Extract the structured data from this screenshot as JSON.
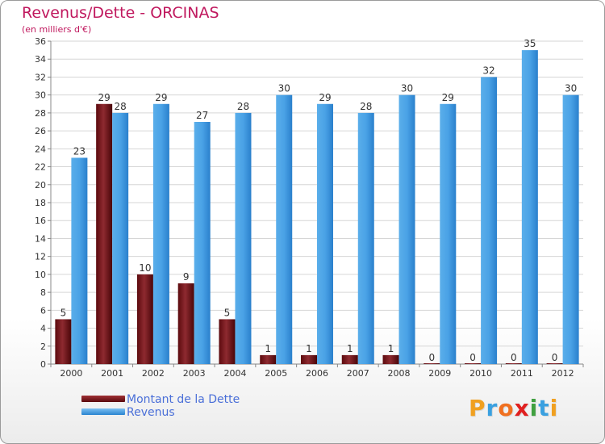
{
  "header": {
    "title": "Revenus/Dette - ORCINAS",
    "subtitle": "(en milliers d'€)"
  },
  "chart_data": {
    "type": "bar",
    "categories": [
      "2000",
      "2001",
      "2002",
      "2003",
      "2004",
      "2005",
      "2006",
      "2007",
      "2008",
      "2009",
      "2010",
      "2011",
      "2012"
    ],
    "series": [
      {
        "name": "Montant de la Dette",
        "color": "#6b0e12",
        "values": [
          5,
          29,
          10,
          9,
          5,
          1,
          1,
          1,
          1,
          0,
          0,
          0,
          0
        ]
      },
      {
        "name": "Revenus",
        "color": "#3d97e0",
        "values": [
          23,
          28,
          29,
          27,
          28,
          30,
          29,
          28,
          30,
          29,
          32,
          35,
          30
        ]
      }
    ],
    "ylim": [
      0,
      36
    ],
    "yticks": [
      0,
      2,
      4,
      6,
      8,
      10,
      12,
      14,
      16,
      18,
      20,
      22,
      24,
      26,
      28,
      30,
      32,
      34,
      36
    ],
    "grid": true,
    "legend_position": "bottom-left"
  },
  "legend": {
    "items": [
      {
        "label": "Montant de la Dette",
        "color": "#6b0e12"
      },
      {
        "label": "Revenus",
        "color": "#3d97e0"
      }
    ]
  },
  "logo": {
    "letters": [
      "P",
      "r",
      "o",
      "x",
      "i",
      "t",
      "i"
    ],
    "colors": [
      "#f0a020",
      "#3aa0e0",
      "#f07020",
      "#e02020",
      "#40a040",
      "#3aa0e0",
      "#f0a020"
    ]
  }
}
